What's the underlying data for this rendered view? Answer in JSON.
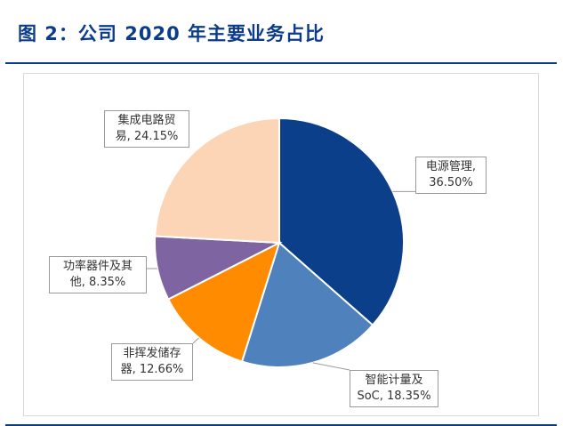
{
  "figure": {
    "title": "图 2：公司 2020 年主要业务占比"
  },
  "chart_data": {
    "type": "pie",
    "slices": [
      {
        "label_line1": "电源管理,",
        "label_line2": "36.50%",
        "category": "电源管理",
        "value": 36.5,
        "color": "#0b3f8a"
      },
      {
        "label_line1": "智能计量及",
        "label_line2": "SoC, 18.35%",
        "category": "智能计量及SoC",
        "value": 18.35,
        "color": "#4f81bd"
      },
      {
        "label_line1": "非挥发储存",
        "label_line2": "器, 12.66%",
        "category": "非挥发储存器",
        "value": 12.66,
        "color": "#ff8c00"
      },
      {
        "label_line1": "功率器件及其",
        "label_line2": "他, 8.35%",
        "category": "功率器件及其他",
        "value": 8.35,
        "color": "#7e64a0"
      },
      {
        "label_line1": "集成电路贸",
        "label_line2": "易, 24.15%",
        "category": "集成电路贸易",
        "value": 24.15,
        "color": "#fbd5b5"
      }
    ]
  }
}
